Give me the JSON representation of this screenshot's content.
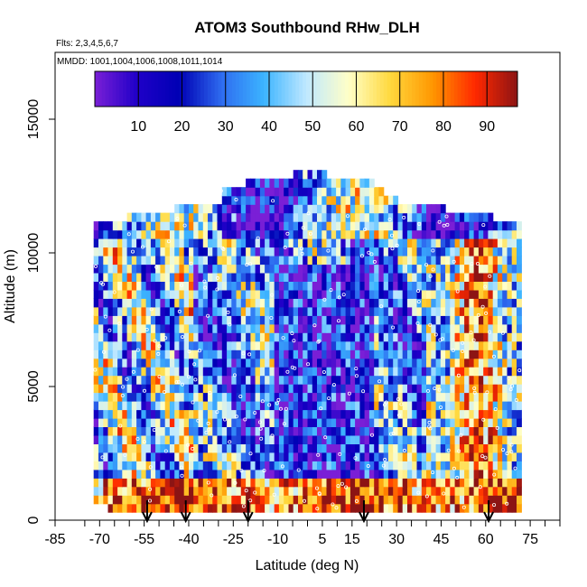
{
  "chart_data": {
    "type": "heatmap",
    "title": "ATOM3 Southbound RHw_DLH",
    "subtitle_flights": "Flts: 2,3,4,5,6,7",
    "subtitle_dates": "MMDD: 1001,1004,1006,1008,1011,1014",
    "xlabel": "Latitude (deg N)",
    "ylabel": "Altitude (m)",
    "xlim": [
      -85,
      85
    ],
    "ylim": [
      0,
      17500
    ],
    "x_ticks": [
      -85,
      -70,
      -55,
      -40,
      -25,
      -10,
      5,
      15,
      30,
      45,
      60,
      75
    ],
    "x_minor_ticks": [
      -75,
      -65,
      -60,
      -50,
      -45,
      -35,
      -30,
      -20,
      -15,
      -5,
      0,
      10,
      20,
      25,
      35,
      40,
      50,
      55,
      65,
      70,
      80,
      85
    ],
    "y_ticks": [
      0,
      5000,
      10000,
      15000
    ],
    "colorbar": {
      "range": [
        0,
        97
      ],
      "ticks": [
        10,
        20,
        30,
        40,
        50,
        60,
        70,
        80,
        90
      ],
      "colors": [
        "#7a1fd6",
        "#1f00c8",
        "#0000b4",
        "#2e6cf0",
        "#3cb4ff",
        "#bfe8ff",
        "#ffffc8",
        "#ffd83c",
        "#ff9600",
        "#ff2800",
        "#8c1414"
      ]
    },
    "profile_latitudes": [
      -54,
      -41,
      -20,
      19,
      61
    ],
    "data_lat_range": [
      -72,
      72
    ],
    "data_alt_range": [
      0,
      12900
    ],
    "dominant_pattern": [
      {
        "region": "boundary layer (0-1500 m)",
        "rh_range": [
          70,
          95
        ]
      },
      {
        "region": "tropical mid troposphere (-10 to 20 N, 2000-9000 m)",
        "rh_range": [
          10,
          30
        ]
      },
      {
        "region": "upper troposphere (> 10000 m)",
        "rh_range": [
          20,
          70
        ]
      },
      {
        "region": "northern mid latitudes (40-70 N)",
        "rh_range": [
          40,
          95
        ]
      }
    ]
  }
}
